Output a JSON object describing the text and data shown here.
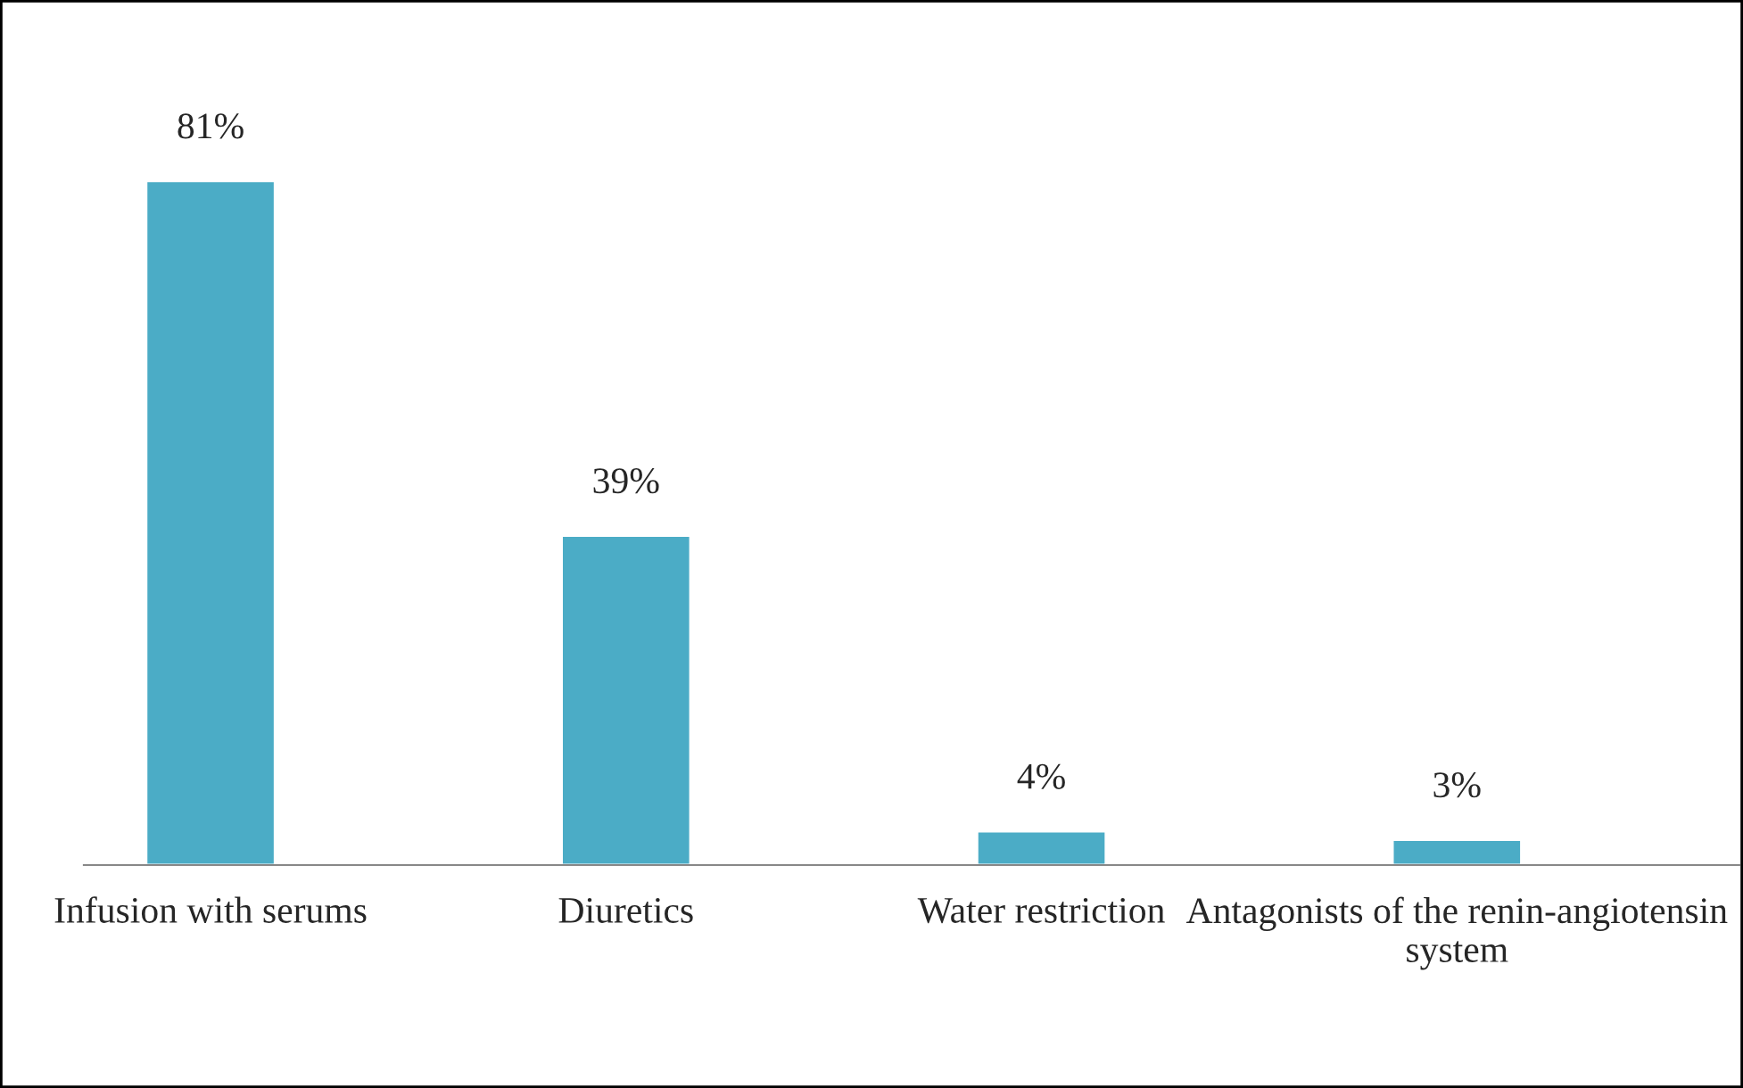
{
  "chart_data": {
    "type": "bar",
    "categories": [
      "Infusion with serums",
      "Diuretics",
      "Water restriction",
      "Antagonists of the renin-angiotensin system"
    ],
    "values": [
      81,
      39,
      4,
      3
    ],
    "color": "#4bacc6",
    "value_labels": [
      "81%",
      "39%",
      "4%",
      "3%"
    ]
  }
}
